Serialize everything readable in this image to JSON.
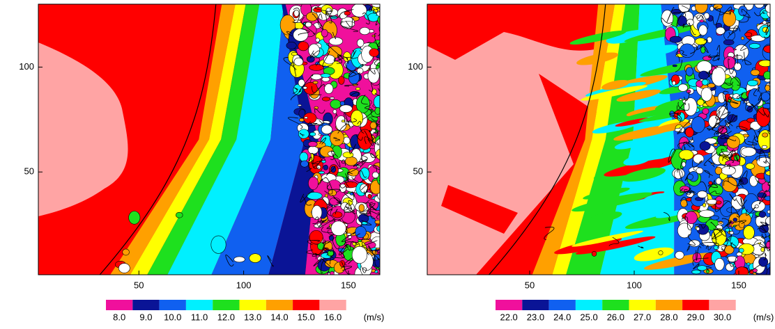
{
  "chart_data": [
    {
      "type": "contour",
      "xlim": [
        2,
        165
      ],
      "ylim": [
        1,
        130
      ],
      "xticks": [
        50,
        100,
        150
      ],
      "yticks": [
        50,
        100
      ],
      "colorbar": {
        "levels": [
          {
            "value": 8,
            "label": "8.0"
          },
          {
            "value": 9,
            "label": "9.0"
          },
          {
            "value": 10,
            "label": "10.0"
          },
          {
            "value": 11,
            "label": "11.0"
          },
          {
            "value": 12,
            "label": "12.0"
          },
          {
            "value": 13,
            "label": "13.0"
          },
          {
            "value": 14,
            "label": "14.0"
          },
          {
            "value": 15,
            "label": "15.0"
          },
          {
            "value": 16,
            "label": "16.0"
          }
        ],
        "colors": [
          "#f0109c",
          "#0a1496",
          "#1060f0",
          "#00f0ff",
          "#1ee01e",
          "#ffff00",
          "#ffa000",
          "#ff0000",
          "#ffa4a4"
        ],
        "units": "(m/s)"
      }
    },
    {
      "type": "contour",
      "xlim": [
        1,
        165
      ],
      "ylim": [
        1,
        130
      ],
      "xticks": [
        50,
        100,
        150
      ],
      "yticks": [
        50,
        100
      ],
      "colorbar": {
        "levels": [
          {
            "value": 22,
            "label": "22.0"
          },
          {
            "value": 23,
            "label": "23.0"
          },
          {
            "value": 24,
            "label": "24.0"
          },
          {
            "value": 25,
            "label": "25.0"
          },
          {
            "value": 26,
            "label": "26.0"
          },
          {
            "value": 27,
            "label": "27.0"
          },
          {
            "value": 28,
            "label": "28.0"
          },
          {
            "value": 29,
            "label": "29.0"
          },
          {
            "value": 30,
            "label": "30.0"
          }
        ],
        "colors": [
          "#f0109c",
          "#0a1496",
          "#1060f0",
          "#00f0ff",
          "#1ee01e",
          "#ffff00",
          "#ffa000",
          "#ff0000",
          "#ffa4a4"
        ],
        "units": "(m/s)"
      }
    }
  ]
}
